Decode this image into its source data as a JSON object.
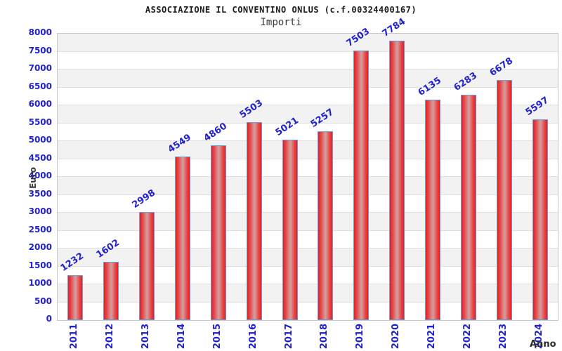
{
  "chart_data": {
    "type": "bar",
    "title": "ASSOCIAZIONE IL CONVENTINO ONLUS (c.f.00324400167)",
    "subtitle": "Importi",
    "xlabel": "Anno",
    "ylabel": "Euro",
    "categories": [
      "2011",
      "2012",
      "2013",
      "2014",
      "2015",
      "2016",
      "2017",
      "2018",
      "2019",
      "2020",
      "2021",
      "2022",
      "2023",
      "2024"
    ],
    "values": [
      1232,
      1602,
      2998,
      4549,
      4860,
      5503,
      5021,
      5257,
      7503,
      7784,
      6135,
      6283,
      6678,
      5597
    ],
    "ylim": [
      0,
      8000
    ],
    "ytick_step": 500,
    "grid": true,
    "legend": "none",
    "colors": {
      "label_blue": "#2222cc",
      "bar_edge_red": "#ee1a1a",
      "bar_center_light": "#d49c9c",
      "bar_border_blue": "#66a0d8",
      "band_gray": "#f2f2f2",
      "gridline_gray": "#e0e0e0",
      "plot_border_gray": "#c9c9c9",
      "title_color": "#1c1c1c",
      "axis_title_color": "#3a3a3a"
    }
  }
}
